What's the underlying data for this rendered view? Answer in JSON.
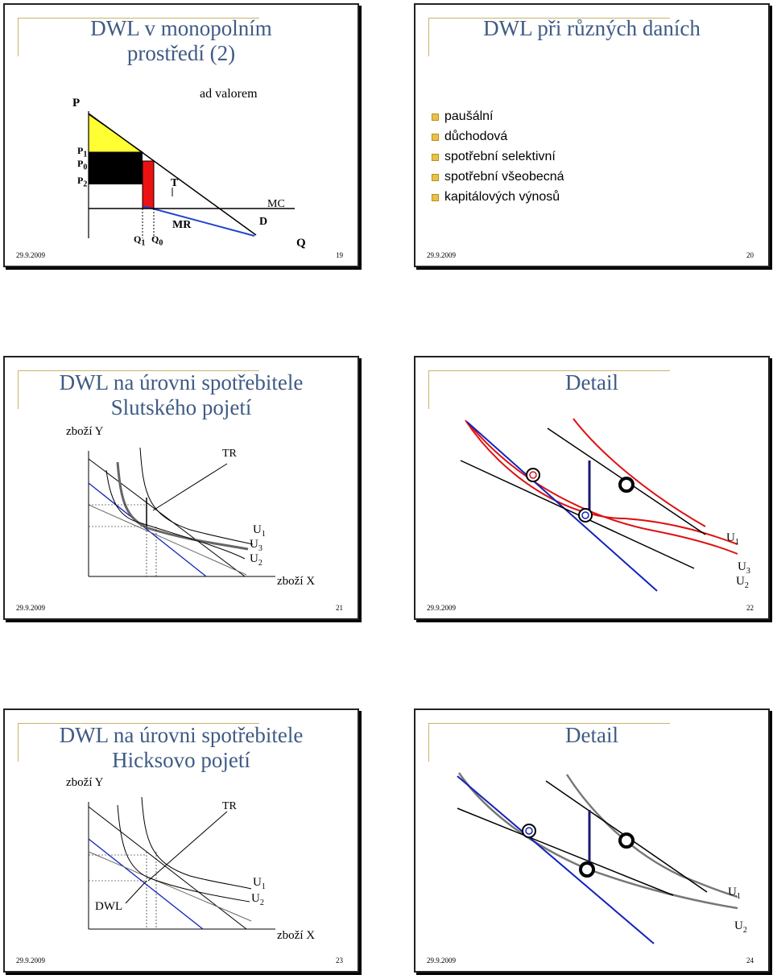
{
  "slides": [
    {
      "number": "19",
      "date": "29.9.2009",
      "title_lines": [
        "DWL v monopolním",
        "prostředí (2)"
      ],
      "graph": {
        "axis_p": "P",
        "label_ad_valorem": "ad valorem",
        "label_p1": "P",
        "label_p1_sub": "1",
        "label_p0": "P",
        "label_p0_sub": "0",
        "label_p2": "P",
        "label_p2_sub": "2",
        "label_t": "T",
        "label_mc": "MC",
        "label_mr": "MR",
        "label_d": "D",
        "label_q1": "Q",
        "label_q1_sub": "1",
        "label_q0": "Q",
        "label_q0_sub": "0",
        "axis_q": "Q"
      },
      "colors": {
        "consumer_surplus": "#ffff33",
        "tax_area": "#000000",
        "dwl": "#ee1111",
        "mr_line": "#2244cc"
      }
    },
    {
      "number": "20",
      "date": "29.9.2009",
      "title_lines": [
        "DWL při různých daních"
      ],
      "bullets": [
        "paušální",
        "důchodová",
        "spotřební selektivní",
        "spotřební všeobecná",
        "kapitálových výnosů"
      ]
    },
    {
      "number": "21",
      "date": "29.9.2009",
      "title_lines": [
        "DWL na úrovni spotřebitele",
        "Slutského pojetí"
      ],
      "graph": {
        "axis_y": "zboží Y",
        "axis_x": "zboží X",
        "label_tr": "TR",
        "label_u1": "U",
        "label_u1_sub": "1",
        "label_u3": "U",
        "label_u3_sub": "3",
        "label_u2": "U",
        "label_u2_sub": "2"
      }
    },
    {
      "number": "22",
      "date": "29.9.2009",
      "title_lines": [
        "Detail"
      ],
      "graph": {
        "label_u1": "U",
        "label_u1_sub": "1",
        "label_u3": "U",
        "label_u3_sub": "3",
        "label_u2": "U",
        "label_u2_sub": "2"
      },
      "colors": {
        "red_curve": "#dd1111",
        "blue_line": "#1122bb"
      }
    },
    {
      "number": "23",
      "date": "29.9.2009",
      "title_lines": [
        "DWL na úrovni spotřebitele",
        "Hicksovo pojetí"
      ],
      "graph": {
        "axis_y": "zboží Y",
        "axis_x": "zboží X",
        "label_tr": "TR",
        "label_dwl": "DWL",
        "label_u1": "U",
        "label_u1_sub": "1",
        "label_u2": "U",
        "label_u2_sub": "2"
      }
    },
    {
      "number": "24",
      "date": "29.9.2009",
      "title_lines": [
        "Detail"
      ],
      "graph": {
        "label_u1": "U",
        "label_u1_sub": "1",
        "label_u2": "U",
        "label_u2_sub": "2"
      },
      "colors": {
        "grey_curve": "#777777",
        "blue_line": "#1122bb"
      }
    }
  ]
}
